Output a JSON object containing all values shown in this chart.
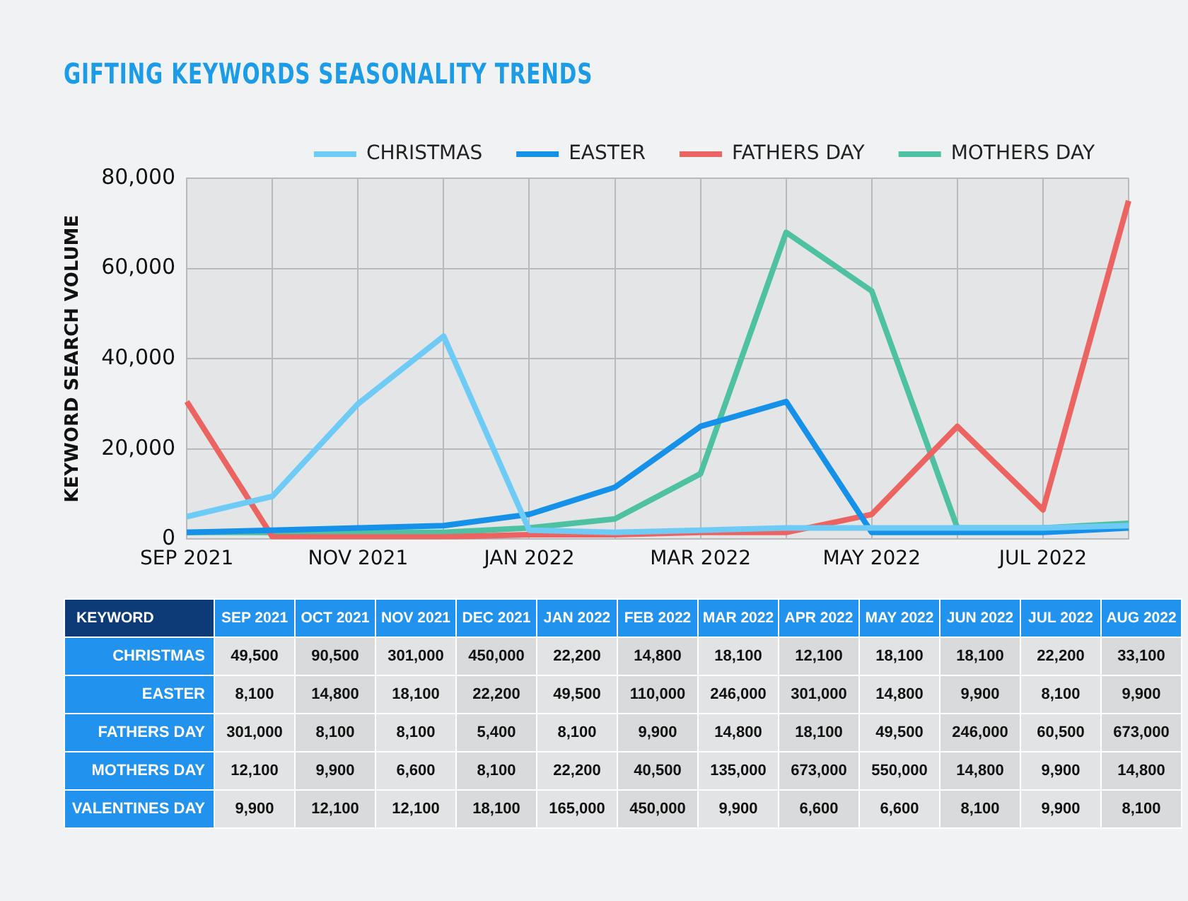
{
  "chart_data": [
    {
      "type": "line",
      "title": "GIFTING KEYWORDS SEASONALITY TRENDS",
      "ylabel": "KEYWORD SEARCH VOLUME",
      "categories": [
        "SEP 2021",
        null,
        "NOV 2021",
        null,
        "JAN 2022",
        null,
        "MAR 2022",
        null,
        "MAY 2022",
        null,
        "JUL 2022",
        null
      ],
      "series": [
        {
          "name": "CHRISTMAS",
          "color": "#6ecbf5",
          "values": [
            5000,
            9500,
            30000,
            45000,
            2000,
            1500,
            2000,
            2500,
            2500,
            2500,
            2500,
            3000
          ]
        },
        {
          "name": "EASTER",
          "color": "#1591ea",
          "values": [
            1500,
            2000,
            2500,
            3000,
            5500,
            11500,
            25000,
            30500,
            1500,
            1500,
            1500,
            2500
          ]
        },
        {
          "name": "FATHERS DAY",
          "color": "#ec6461",
          "values": [
            30500,
            500,
            500,
            500,
            1000,
            1000,
            1500,
            1500,
            5500,
            25000,
            6500,
            75000
          ]
        },
        {
          "name": "MOTHERS DAY",
          "color": "#4ec1a3",
          "values": [
            1500,
            1500,
            1500,
            1500,
            2500,
            4500,
            14500,
            68000,
            55000,
            2500,
            2500,
            3500
          ]
        }
      ],
      "ylim": [
        0,
        80000
      ],
      "yticks": [
        0,
        {
          "value": 20000,
          "label": "20,000"
        },
        {
          "value": 40000,
          "label": "40,000"
        },
        {
          "value": 60000,
          "label": "60,000"
        },
        {
          "value": 80000,
          "label": "80,000"
        }
      ],
      "grid": true,
      "legend": "top right",
      "marker": "none",
      "line_style": "solid"
    },
    {
      "type": "other",
      "ylabel": "KEYWORD",
      "categories": [
        "SEP 2021",
        "OCT 2021",
        "NOV 2021",
        "DEC 2021",
        "JAN 2022",
        "FEB 2022",
        "MAR 2022",
        "APR 2022",
        "MAY 2022",
        "JUN 2022",
        "JUL 2022",
        "AUG 2022"
      ],
      "series": [
        {
          "name": "CHRISTMAS",
          "colors": [
            "#e2e3e4",
            "#d9dadb",
            "#e2e3e4",
            "#d9dadb",
            "#e2e3e4",
            "#d9dadb",
            "#e2e3e4",
            "#d9dadb",
            "#e2e3e4",
            "#d9dadb",
            "#e2e3e4",
            "#d9dadb"
          ],
          "values": [
            49500,
            90500,
            301000,
            450000,
            22200,
            14800,
            18100,
            12100,
            18100,
            18100,
            22200,
            33100
          ],
          "value_labels": [
            "49,500",
            "90,500",
            "301,000",
            "450,000",
            "22,200",
            "14,800",
            "18,100",
            "12,100",
            "18,100",
            "18,100",
            "22,200",
            "33,100"
          ]
        },
        {
          "name": "EASTER",
          "colors": [
            "#e2e3e4",
            "#d9dadb",
            "#e2e3e4",
            "#d9dadb",
            "#e2e3e4",
            "#d9dadb",
            "#e2e3e4",
            "#d9dadb",
            "#e2e3e4",
            "#d9dadb",
            "#e2e3e4",
            "#d9dadb"
          ],
          "values": [
            8100,
            14800,
            18100,
            22200,
            49500,
            110000,
            246000,
            301000,
            14800,
            9900,
            8100,
            9900
          ],
          "value_labels": [
            "8,100",
            "14,800",
            "18,100",
            "22,200",
            "49,500",
            "110,000",
            "246,000",
            "301,000",
            "14,800",
            "9,900",
            "8,100",
            "9,900"
          ]
        },
        {
          "name": "FATHERS DAY",
          "colors": [
            "#e2e3e4",
            "#d9dadb",
            "#e2e3e4",
            "#d9dadb",
            "#e2e3e4",
            "#d9dadb",
            "#e2e3e4",
            "#d9dadb",
            "#e2e3e4",
            "#d9dadb",
            "#e2e3e4",
            "#d9dadb"
          ],
          "values": [
            301000,
            8100,
            8100,
            5400,
            8100,
            9900,
            14800,
            18100,
            49500,
            246000,
            60500,
            673000
          ],
          "value_labels": [
            "301,000",
            "8,100",
            "8,100",
            "5,400",
            "8,100",
            "9,900",
            "14,800",
            "18,100",
            "49,500",
            "246,000",
            "60,500",
            "673,000"
          ]
        },
        {
          "name": "MOTHERS DAY",
          "colors": [
            "#e2e3e4",
            "#d9dadb",
            "#e2e3e4",
            "#d9dadb",
            "#e2e3e4",
            "#d9dadb",
            "#e2e3e4",
            "#d9dadb",
            "#e2e3e4",
            "#d9dadb",
            "#e2e3e4",
            "#d9dadb"
          ],
          "values": [
            12100,
            9900,
            6600,
            8100,
            22200,
            40500,
            135000,
            673000,
            550000,
            14800,
            9900,
            14800
          ],
          "value_labels": [
            "12,100",
            "9,900",
            "6,600",
            "8,100",
            "22,200",
            "40,500",
            "135,000",
            "673,000",
            "550,000",
            "14,800",
            "9,900",
            "14,800"
          ]
        },
        {
          "name": "VALENTINES DAY",
          "colors": [
            "#e2e3e4",
            "#d9dadb",
            "#e2e3e4",
            "#d9dadb",
            "#e2e3e4",
            "#d9dadb",
            "#e2e3e4",
            "#d9dadb",
            "#e2e3e4",
            "#d9dadb",
            "#e2e3e4",
            "#d9dadb"
          ],
          "values": [
            9900,
            12100,
            12100,
            18100,
            165000,
            450000,
            9900,
            6600,
            6600,
            8100,
            9900,
            8100
          ],
          "value_labels": [
            "9,900",
            "12,100",
            "12,100",
            "18,100",
            "165,000",
            "450,000",
            "9,900",
            "6,600",
            "6,600",
            "8,100",
            "9,900",
            "8,100"
          ]
        }
      ]
    }
  ]
}
